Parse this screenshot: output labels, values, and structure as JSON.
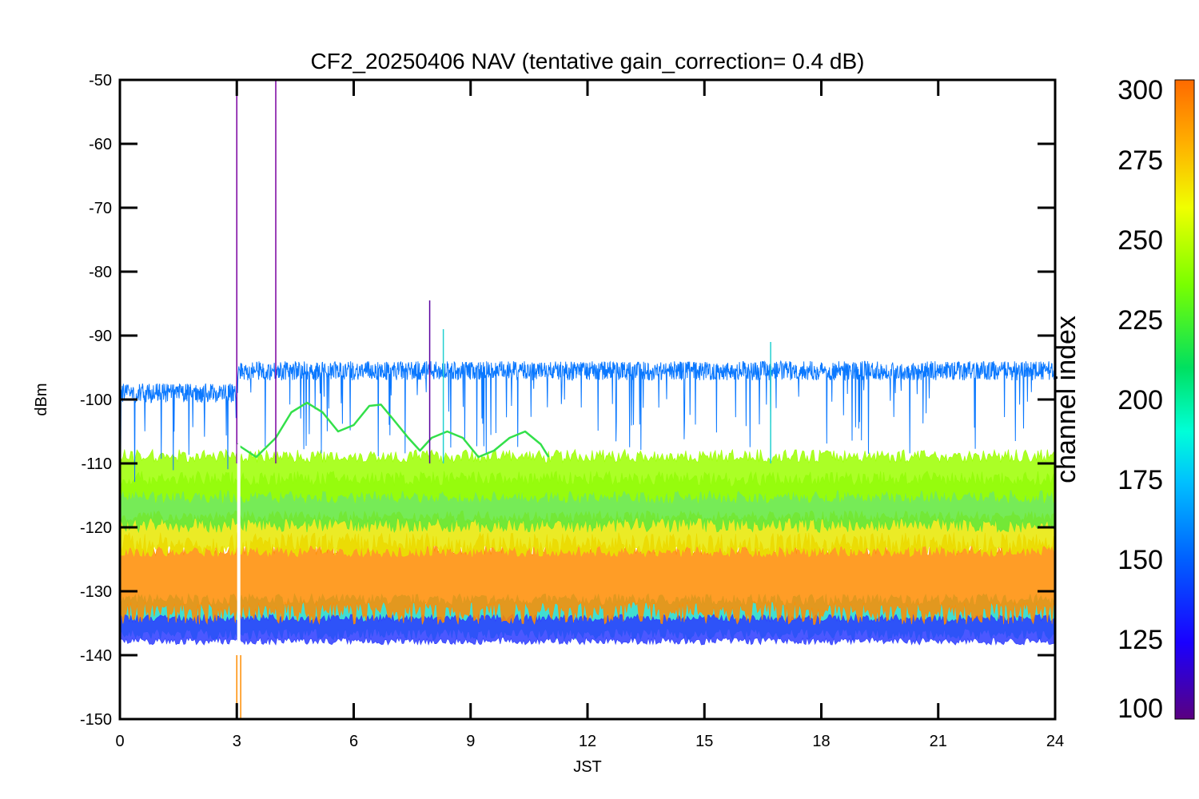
{
  "chart_data": {
    "type": "line",
    "title": "CF2_20250406 NAV (tentative gain_correction=  0.4 dB)",
    "xlabel": "JST",
    "ylabel": "dBm",
    "xlim": [
      0,
      24
    ],
    "ylim": [
      -150,
      -50
    ],
    "x_ticks": [
      0,
      3,
      6,
      9,
      12,
      15,
      18,
      21,
      24
    ],
    "y_ticks": [
      -50,
      -60,
      -70,
      -80,
      -90,
      -100,
      -110,
      -120,
      -130,
      -140,
      -150
    ],
    "grid": false,
    "colorbar": {
      "label": "channel index",
      "range": [
        100,
        300
      ],
      "ticks": [
        300,
        275,
        250,
        225,
        200,
        175,
        150,
        125,
        100
      ],
      "colormap": "rainbow"
    },
    "series": [
      {
        "channel": 150,
        "color": "#0a78ff",
        "level_before_3h": -99,
        "level_after_3h": -95.5,
        "noise": 1.5
      },
      {
        "channel": 235,
        "color": "#33e04a",
        "points": [
          [
            3.0,
            -107
          ],
          [
            3.5,
            -109
          ],
          [
            4.0,
            -106
          ],
          [
            4.4,
            -102
          ],
          [
            4.8,
            -100.5
          ],
          [
            5.2,
            -102
          ],
          [
            5.6,
            -105
          ],
          [
            6.0,
            -104
          ],
          [
            6.4,
            -101
          ],
          [
            6.7,
            -100.8
          ],
          [
            7.0,
            -103
          ],
          [
            7.4,
            -106
          ],
          [
            7.7,
            -108
          ],
          [
            8.0,
            -106
          ],
          [
            8.4,
            -105
          ],
          [
            8.8,
            -106
          ],
          [
            9.2,
            -109
          ],
          [
            9.6,
            -108
          ],
          [
            10.0,
            -106
          ],
          [
            10.4,
            -105
          ],
          [
            10.8,
            -107
          ],
          [
            11.0,
            -109
          ]
        ]
      },
      {
        "channel": 255,
        "color": "#9cff00",
        "center": -112,
        "spread": 3.5
      },
      {
        "channel": 240,
        "color": "#5ee83a",
        "center": -116,
        "spread": 4
      },
      {
        "channel": 270,
        "color": "#e8e800",
        "center": -121,
        "spread": 3
      },
      {
        "channel": 285,
        "color": "#ff8c00",
        "center": -128,
        "spread": 6
      },
      {
        "channel": 200,
        "color": "#20d8c8",
        "center": -134,
        "spread": 3
      },
      {
        "channel": 120,
        "color": "#2b3bff",
        "center": -136,
        "spread": 2
      }
    ],
    "spikes": [
      {
        "x": 3.0,
        "y_top": -52,
        "color": "#7a00a0"
      },
      {
        "x": 4.0,
        "y_top": -50,
        "color": "#7a00a0"
      },
      {
        "x": 7.95,
        "y_top": -84.5,
        "color": "#5a00a0"
      },
      {
        "x": 8.3,
        "y_top": -89,
        "color": "#22d0d0"
      },
      {
        "x": 16.7,
        "y_top": -91,
        "color": "#22d0d0"
      }
    ],
    "gap": {
      "x": 3.05,
      "color": "#ffffff"
    }
  }
}
